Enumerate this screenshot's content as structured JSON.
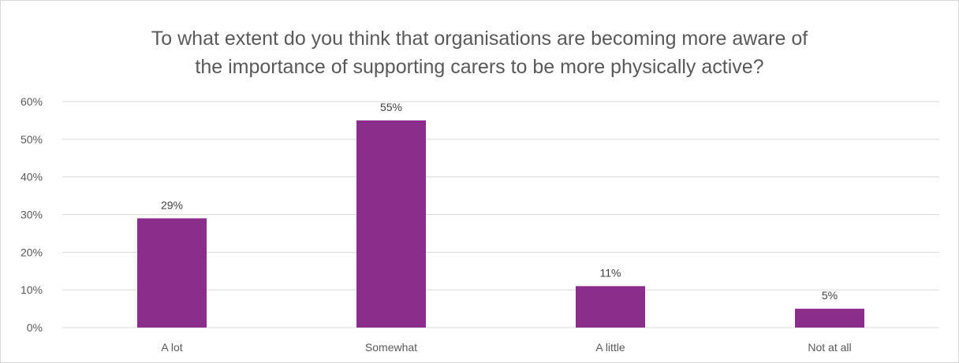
{
  "chart_data": {
    "type": "bar",
    "title_lines": [
      "To what extent do you think that organisations are becoming more aware of",
      "the importance of supporting carers to be more physically active?"
    ],
    "categories": [
      "A lot",
      "Somewhat",
      "A little",
      "Not at all"
    ],
    "values": [
      29,
      55,
      11,
      5
    ],
    "data_labels": [
      "29%",
      "55%",
      "11%",
      "5%"
    ],
    "y_ticks": [
      "0%",
      "10%",
      "20%",
      "30%",
      "40%",
      "50%",
      "60%"
    ],
    "ylim": [
      0,
      60
    ],
    "grid": true,
    "legend": "none",
    "bar_color": "#8b2d8a",
    "grid_color": "#d9d9d9"
  }
}
